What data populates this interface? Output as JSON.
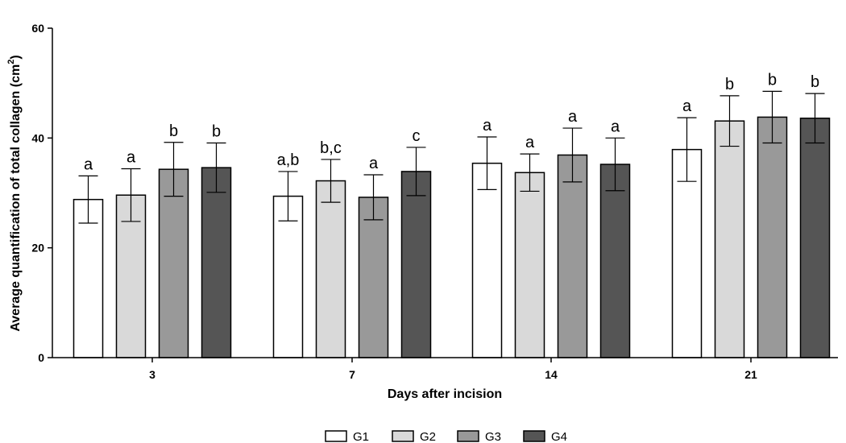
{
  "chart_data": {
    "type": "bar",
    "xlabel": "Days after incision",
    "ylabel_main": "Average quantification of total collagen (cm",
    "ylabel_sup": "2",
    "ylabel_close": ")",
    "ylim": [
      0,
      60
    ],
    "yticks": [
      "0",
      "20",
      "40",
      "60"
    ],
    "categories": [
      "3",
      "7",
      "14",
      "21"
    ],
    "legend_position": "bottom",
    "grid": false,
    "series": [
      {
        "name": "G1",
        "color": "#ffffff",
        "values": [
          28.8,
          29.4,
          35.4,
          37.9
        ],
        "errors": [
          4.3,
          4.5,
          4.8,
          5.8
        ],
        "labels": [
          "a",
          "a,b",
          "a",
          "a"
        ]
      },
      {
        "name": "G2",
        "color": "#d9d9d9",
        "values": [
          29.6,
          32.2,
          33.7,
          43.1
        ],
        "errors": [
          4.8,
          3.9,
          3.4,
          4.6
        ],
        "labels": [
          "a",
          "b,c",
          "a",
          "b"
        ]
      },
      {
        "name": "G3",
        "color": "#999999",
        "values": [
          34.3,
          29.2,
          36.9,
          43.8
        ],
        "errors": [
          4.9,
          4.1,
          4.9,
          4.7
        ],
        "labels": [
          "b",
          "a",
          "a",
          "b"
        ]
      },
      {
        "name": "G4",
        "color": "#555555",
        "values": [
          34.6,
          33.9,
          35.2,
          43.6
        ],
        "errors": [
          4.5,
          4.4,
          4.8,
          4.5
        ],
        "labels": [
          "b",
          "c",
          "a",
          "b"
        ]
      }
    ]
  }
}
